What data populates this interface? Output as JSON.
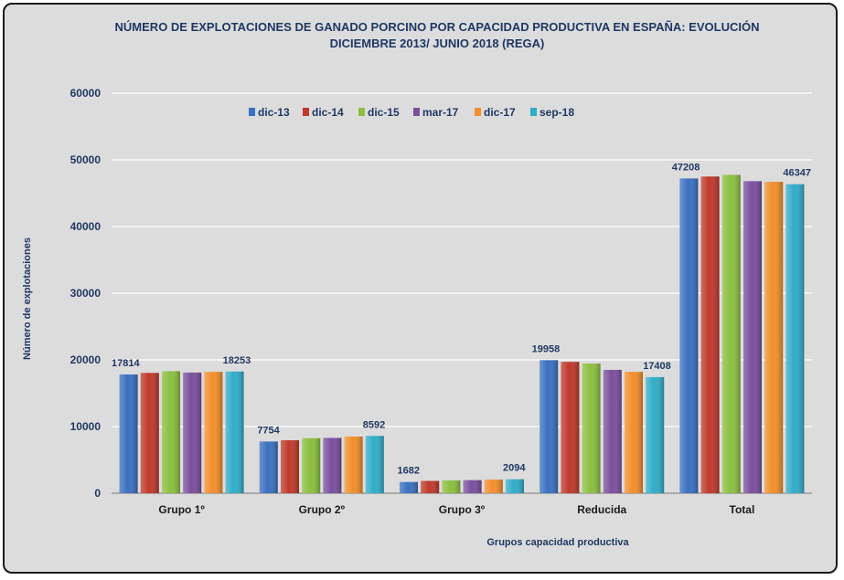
{
  "chart_data": {
    "type": "bar",
    "title": [
      "NÚMERO DE EXPLOTACIONES DE GANADO PORCINO POR CAPACIDAD PRODUCTIVA EN ESPAÑA: EVOLUCIÓN",
      "DICIEMBRE 2013/ JUNIO 2018 (REGA)"
    ],
    "xlabel": "Grupos capacidad productiva",
    "ylabel": "Número de explotaciones",
    "ylim": [
      0,
      60000
    ],
    "yticks": [
      0,
      10000,
      20000,
      30000,
      40000,
      50000,
      60000
    ],
    "grid": true,
    "legend_position": "top",
    "categories": [
      "Grupo 1º",
      "Grupo 2º",
      "Grupo 3º",
      "Reducida",
      "Total"
    ],
    "series": [
      {
        "name": "dic-13",
        "color": "#3a70c0",
        "values": [
          17814,
          7754,
          1682,
          19958,
          47208
        ]
      },
      {
        "name": "dic-14",
        "color": "#c0392b",
        "values": [
          18050,
          7950,
          1850,
          19700,
          47500
        ]
      },
      {
        "name": "dic-15",
        "color": "#8bbf3f",
        "values": [
          18300,
          8250,
          1920,
          19450,
          47750
        ]
      },
      {
        "name": "mar-17",
        "color": "#7b4f9e",
        "values": [
          18100,
          8300,
          1960,
          18500,
          46800
        ]
      },
      {
        "name": "dic-17",
        "color": "#f28e2b",
        "values": [
          18200,
          8500,
          2050,
          18200,
          46700
        ]
      },
      {
        "name": "sep-18",
        "color": "#31acc9",
        "values": [
          18253,
          8592,
          2094,
          17408,
          46347
        ]
      }
    ],
    "data_labels": [
      {
        "category": 0,
        "series": 0,
        "text": "17814"
      },
      {
        "category": 0,
        "series": 5,
        "text": "18253"
      },
      {
        "category": 1,
        "series": 0,
        "text": "7754"
      },
      {
        "category": 1,
        "series": 5,
        "text": "8592"
      },
      {
        "category": 2,
        "series": 0,
        "text": "1682"
      },
      {
        "category": 2,
        "series": 5,
        "text": "2094"
      },
      {
        "category": 3,
        "series": 0,
        "text": "19958"
      },
      {
        "category": 3,
        "series": 5,
        "text": "17408"
      },
      {
        "category": 4,
        "series": 0,
        "text": "47208"
      },
      {
        "category": 4,
        "series": 5,
        "text": "46347"
      }
    ]
  }
}
